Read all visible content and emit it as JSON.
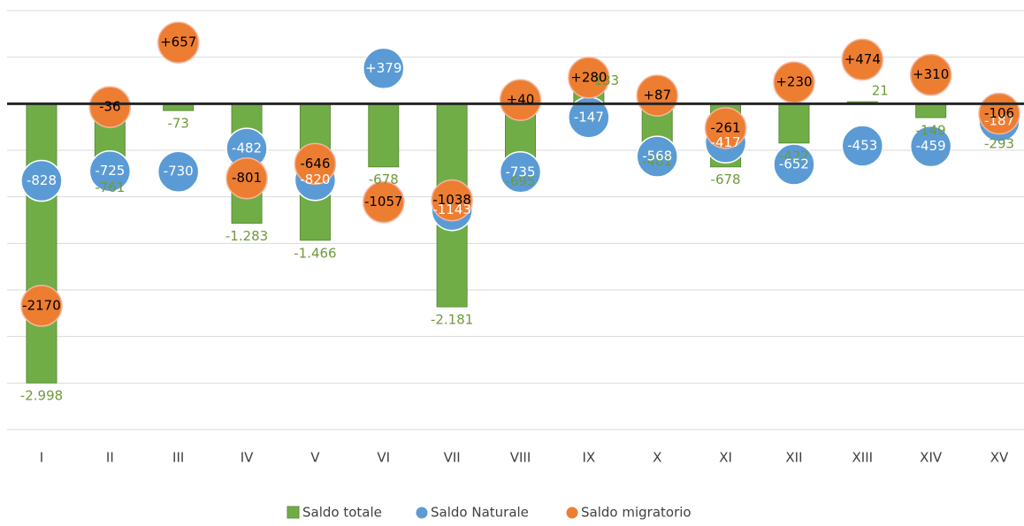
{
  "chart_data": {
    "type": "bar",
    "categories": [
      "I",
      "II",
      "III",
      "IV",
      "V",
      "VI",
      "VII",
      "VIII",
      "IX",
      "X",
      "XI",
      "XII",
      "XIII",
      "XIV",
      "XV"
    ],
    "ylim": [
      -3500,
      1000
    ],
    "yticks": [
      1000,
      500,
      0,
      -500,
      -1000,
      -1500,
      -2000,
      -2500,
      -3000,
      -3500
    ],
    "grid": true,
    "legend": "bottom",
    "series": [
      {
        "name": "Saldo totale",
        "type": "bar",
        "color": "#70ad47",
        "values": [
          -2998,
          -761,
          -73,
          -1283,
          -1466,
          -678,
          -2181,
          -695,
          133,
          -481,
          -678,
          -422,
          21,
          -149,
          -293
        ],
        "value_labels": [
          "-2.998",
          "-761",
          "-73",
          "-1.283",
          "-1.466",
          "-678",
          "-2.181",
          "-695",
          "133",
          "-481",
          "-678",
          "-422",
          "21",
          "-149",
          "-293"
        ]
      },
      {
        "name": "Saldo Naturale",
        "type": "scatter",
        "color": "#5b9bd5",
        "values": [
          -828,
          -725,
          -730,
          -482,
          -820,
          379,
          -1143,
          -735,
          -147,
          -568,
          -417,
          -652,
          -453,
          -459,
          -187
        ],
        "value_labels": [
          "-828",
          "-725",
          "-730",
          "-482",
          "-820",
          "+379",
          "-1143",
          "-735",
          "-147",
          "-568",
          "-417",
          "-652",
          "-453",
          "-459",
          "-187"
        ]
      },
      {
        "name": "Saldo migratorio",
        "type": "scatter",
        "color": "#ed7d31",
        "values": [
          -2170,
          -36,
          657,
          -801,
          -646,
          -1057,
          -1038,
          40,
          280,
          87,
          -261,
          230,
          474,
          310,
          -106
        ],
        "value_labels": [
          "-2170",
          "-36",
          "+657",
          "-801",
          "-646",
          "-1057",
          "-1038",
          "+40",
          "+280",
          "+87",
          "-261",
          "+230",
          "+474",
          "+310",
          "-106"
        ]
      }
    ]
  }
}
